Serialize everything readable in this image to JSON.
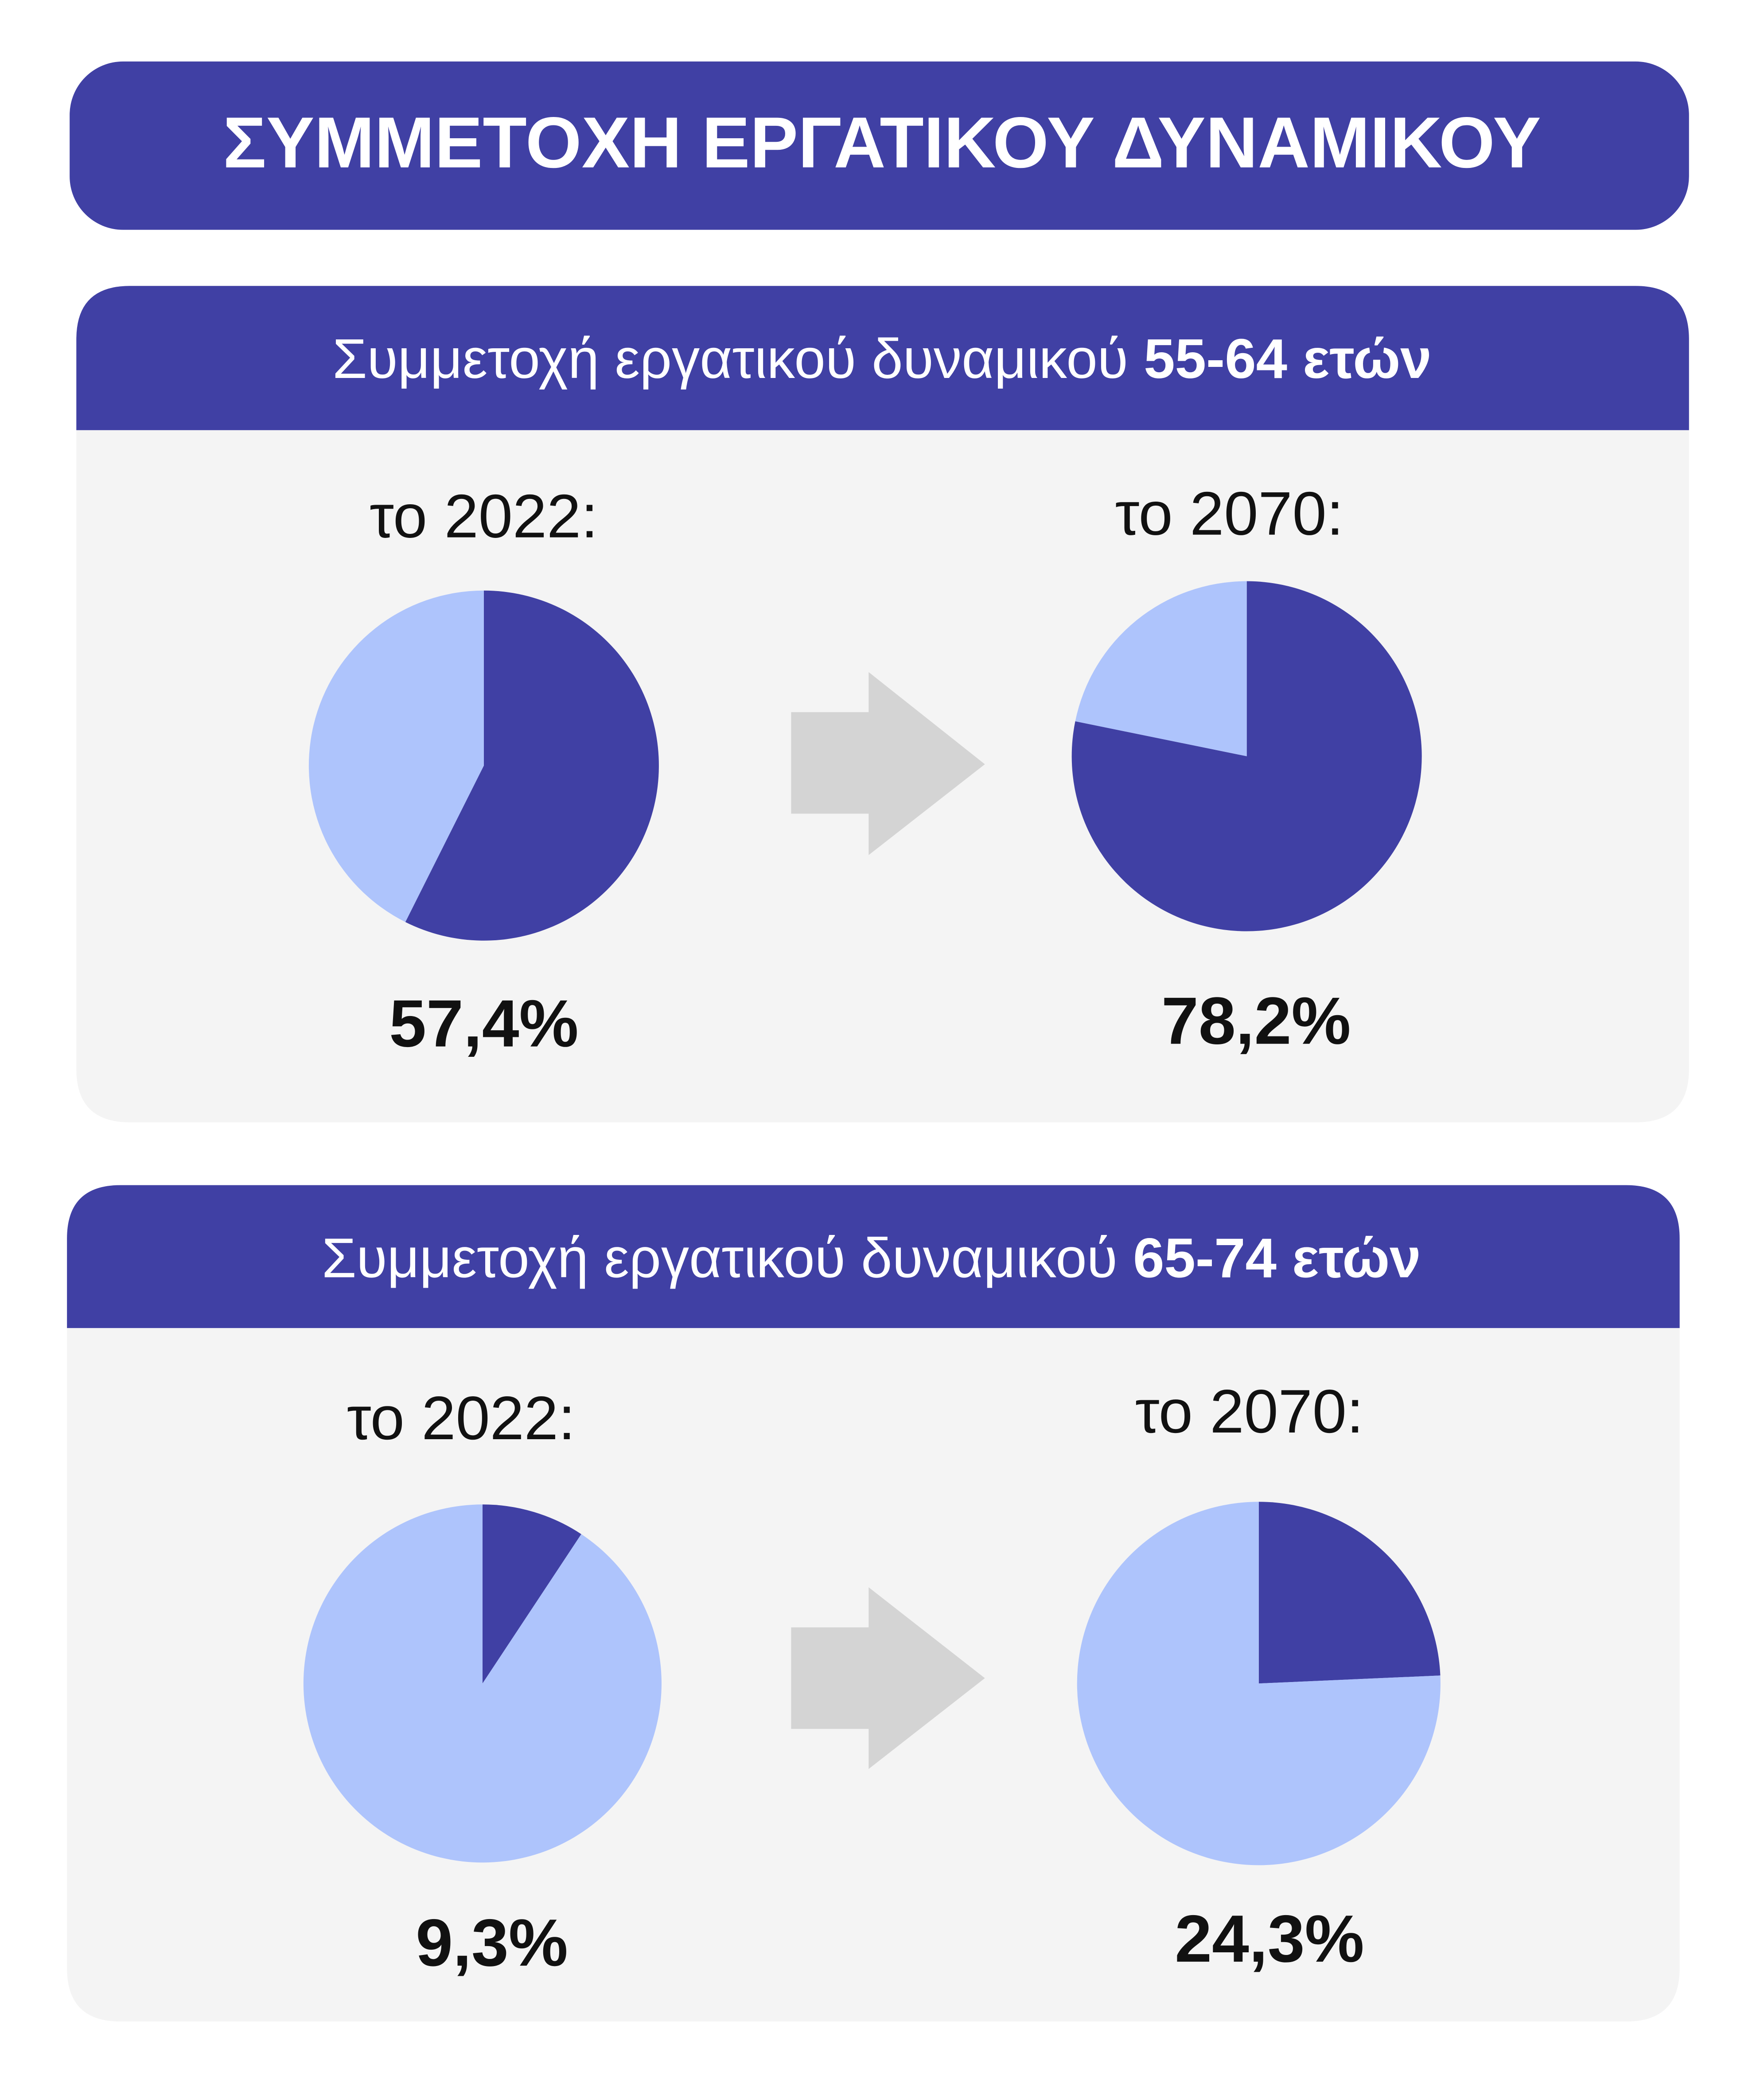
{
  "title": "ΣΥΜΜΕΤΟΧΗ ΕΡΓΑΤΙΚΟΥ ΔΥΝΑΜΙΚΟΥ",
  "sections": [
    {
      "heading": "Συμμετοχή εργατικού δυναμικού",
      "heading_bold": "55-64 ετών"
    },
    {
      "heading": "Συμμετοχή εργατικού δυναμικού",
      "heading_bold": "65-74 ετών"
    }
  ],
  "chart_data": [
    {
      "type": "pie",
      "title": "το 2022:",
      "values": [
        57.4,
        42.6
      ],
      "value_labels": [
        "57,4%",
        null
      ],
      "colors": [
        "#4040a4",
        "#aec4fc"
      ]
    },
    {
      "type": "pie",
      "title": "το 2070:",
      "values": [
        78.2,
        21.8
      ],
      "value_labels": [
        "78,2%",
        null
      ],
      "colors": [
        "#4040a4",
        "#aec4fc"
      ]
    },
    {
      "type": "pie",
      "title": "το 2022:",
      "values": [
        9.3,
        90.7
      ],
      "value_labels": [
        "9,3%",
        null
      ],
      "colors": [
        "#4040a4",
        "#aec4fc"
      ]
    },
    {
      "type": "pie",
      "title": "το 2070:",
      "values": [
        24.3,
        75.7
      ],
      "value_labels": [
        "24,3%",
        null
      ],
      "colors": [
        "#4040a4",
        "#aec4fc"
      ]
    }
  ]
}
